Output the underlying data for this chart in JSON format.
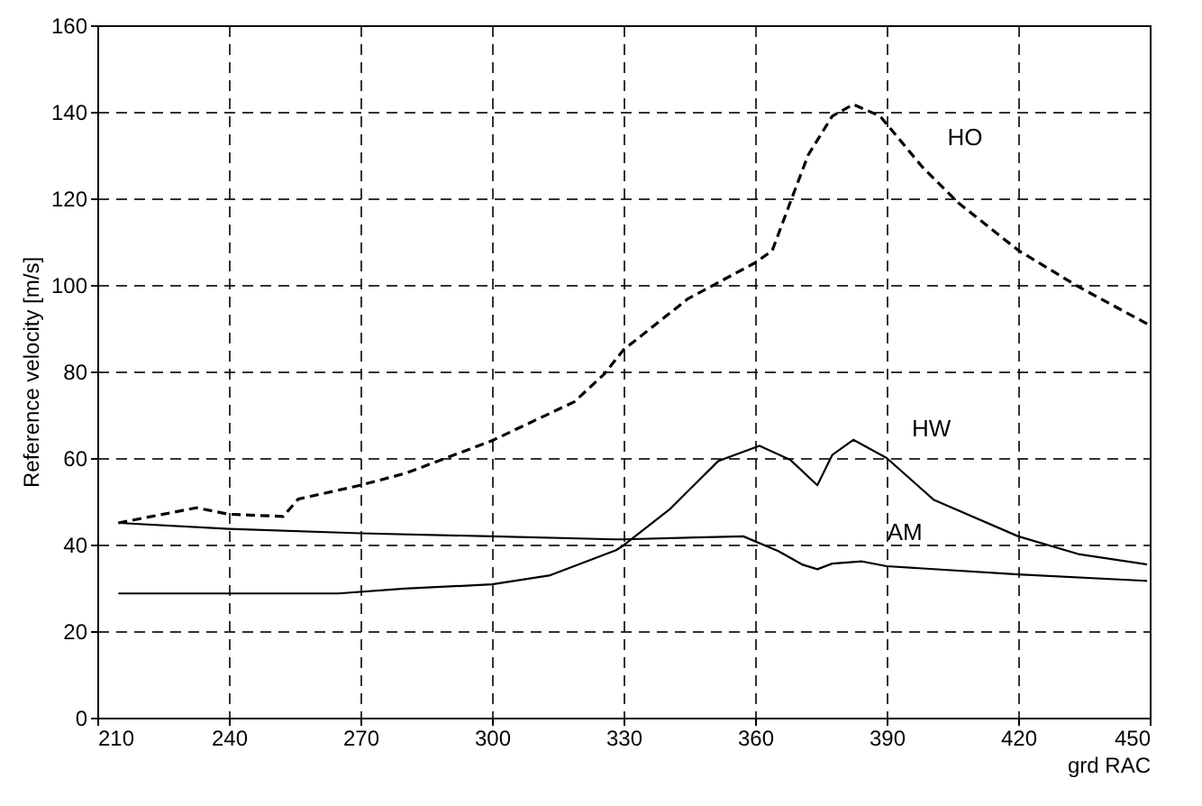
{
  "chart_data": {
    "type": "line",
    "xlabel": "grd RAC",
    "ylabel": "Reference velocity [m/s]",
    "xlim": [
      210,
      450
    ],
    "ylim": [
      0,
      160
    ],
    "xticks": [
      210,
      240,
      270,
      300,
      330,
      360,
      390,
      420,
      450
    ],
    "yticks": [
      0,
      20,
      40,
      60,
      80,
      100,
      120,
      140,
      160
    ],
    "grid": true,
    "marker": "none",
    "series": [
      {
        "name": "HO",
        "color": "#000000",
        "line_style": "dashed",
        "x": [
          214.8,
          232.6,
          240,
          252.4,
          255.8,
          270,
          280.4,
          300,
          318.8,
          325.6,
          330,
          344.7,
          360,
          363.9,
          368,
          372.1,
          377.6,
          382.4,
          388.5,
          398.1,
          406.3,
          420,
          433.7,
          449.4
        ],
        "values": [
          45,
          48.5,
          47,
          46.5,
          50.5,
          53.7,
          56.5,
          64,
          73,
          79.4,
          85,
          96.8,
          105.1,
          107.9,
          119,
          130,
          139,
          141.7,
          139,
          127.3,
          119,
          108,
          99.6,
          91
        ]
      },
      {
        "name": "HW",
        "color": "#000000",
        "line_style": "solid",
        "x": [
          214.8,
          265,
          280,
          300,
          313.3,
          328.3,
          330,
          340.6,
          351.6,
          361,
          368,
          374.2,
          377.6,
          382.4,
          390,
          400.8,
          420,
          433.7,
          449.4
        ],
        "values": [
          28.7,
          28.7,
          29.8,
          30.8,
          32.9,
          38.7,
          39.8,
          48.2,
          59.3,
          62.8,
          59.6,
          53.7,
          60.7,
          64.2,
          60,
          50.3,
          41.9,
          37.8,
          35.4
        ]
      },
      {
        "name": "AM",
        "color": "#000000",
        "line_style": "solid",
        "x": [
          214.8,
          240,
          270,
          300,
          328,
          330,
          357.3,
          365.3,
          370.7,
          374.2,
          377.6,
          384.4,
          390,
          420,
          449.4
        ],
        "values": [
          45,
          43.6,
          42.6,
          41.9,
          41.2,
          41.2,
          41.9,
          38.5,
          35.4,
          34.3,
          35.6,
          36.1,
          35,
          33.1,
          31.6
        ]
      }
    ]
  }
}
